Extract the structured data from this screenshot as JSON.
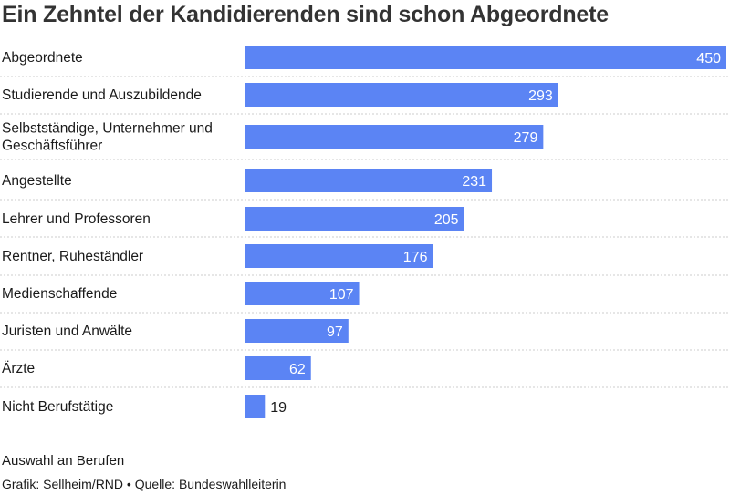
{
  "colors": {
    "bar": "#5b84f4",
    "divider": "#cccccc",
    "title": "#333333",
    "text": "#1a1a1a"
  },
  "chart_data": {
    "type": "bar",
    "orientation": "horizontal",
    "title": "Ein Zehntel der Kandidierenden sind schon Abgeordnete",
    "categories": [
      [
        "Abgeordnete"
      ],
      [
        "Studierende und Auszubildende"
      ],
      [
        "Selbstständige, Unternehmer und",
        "Geschäftsführer"
      ],
      [
        "Angestellte"
      ],
      [
        "Lehrer und Professoren"
      ],
      [
        "Rentner, Ruheständler"
      ],
      [
        "Medienschaffende"
      ],
      [
        "Juristen und Anwälte"
      ],
      [
        "Ärzte"
      ],
      [
        "Nicht Berufstätige"
      ]
    ],
    "values": [
      450,
      293,
      279,
      231,
      205,
      176,
      107,
      97,
      62,
      19
    ],
    "xlim": [
      0,
      450
    ],
    "grid": false,
    "legend": "none"
  },
  "footer": {
    "note": "Auswahl an Berufen",
    "source": "Grafik: Sellheim/RND • Quelle: Bundeswahlleiterin"
  }
}
